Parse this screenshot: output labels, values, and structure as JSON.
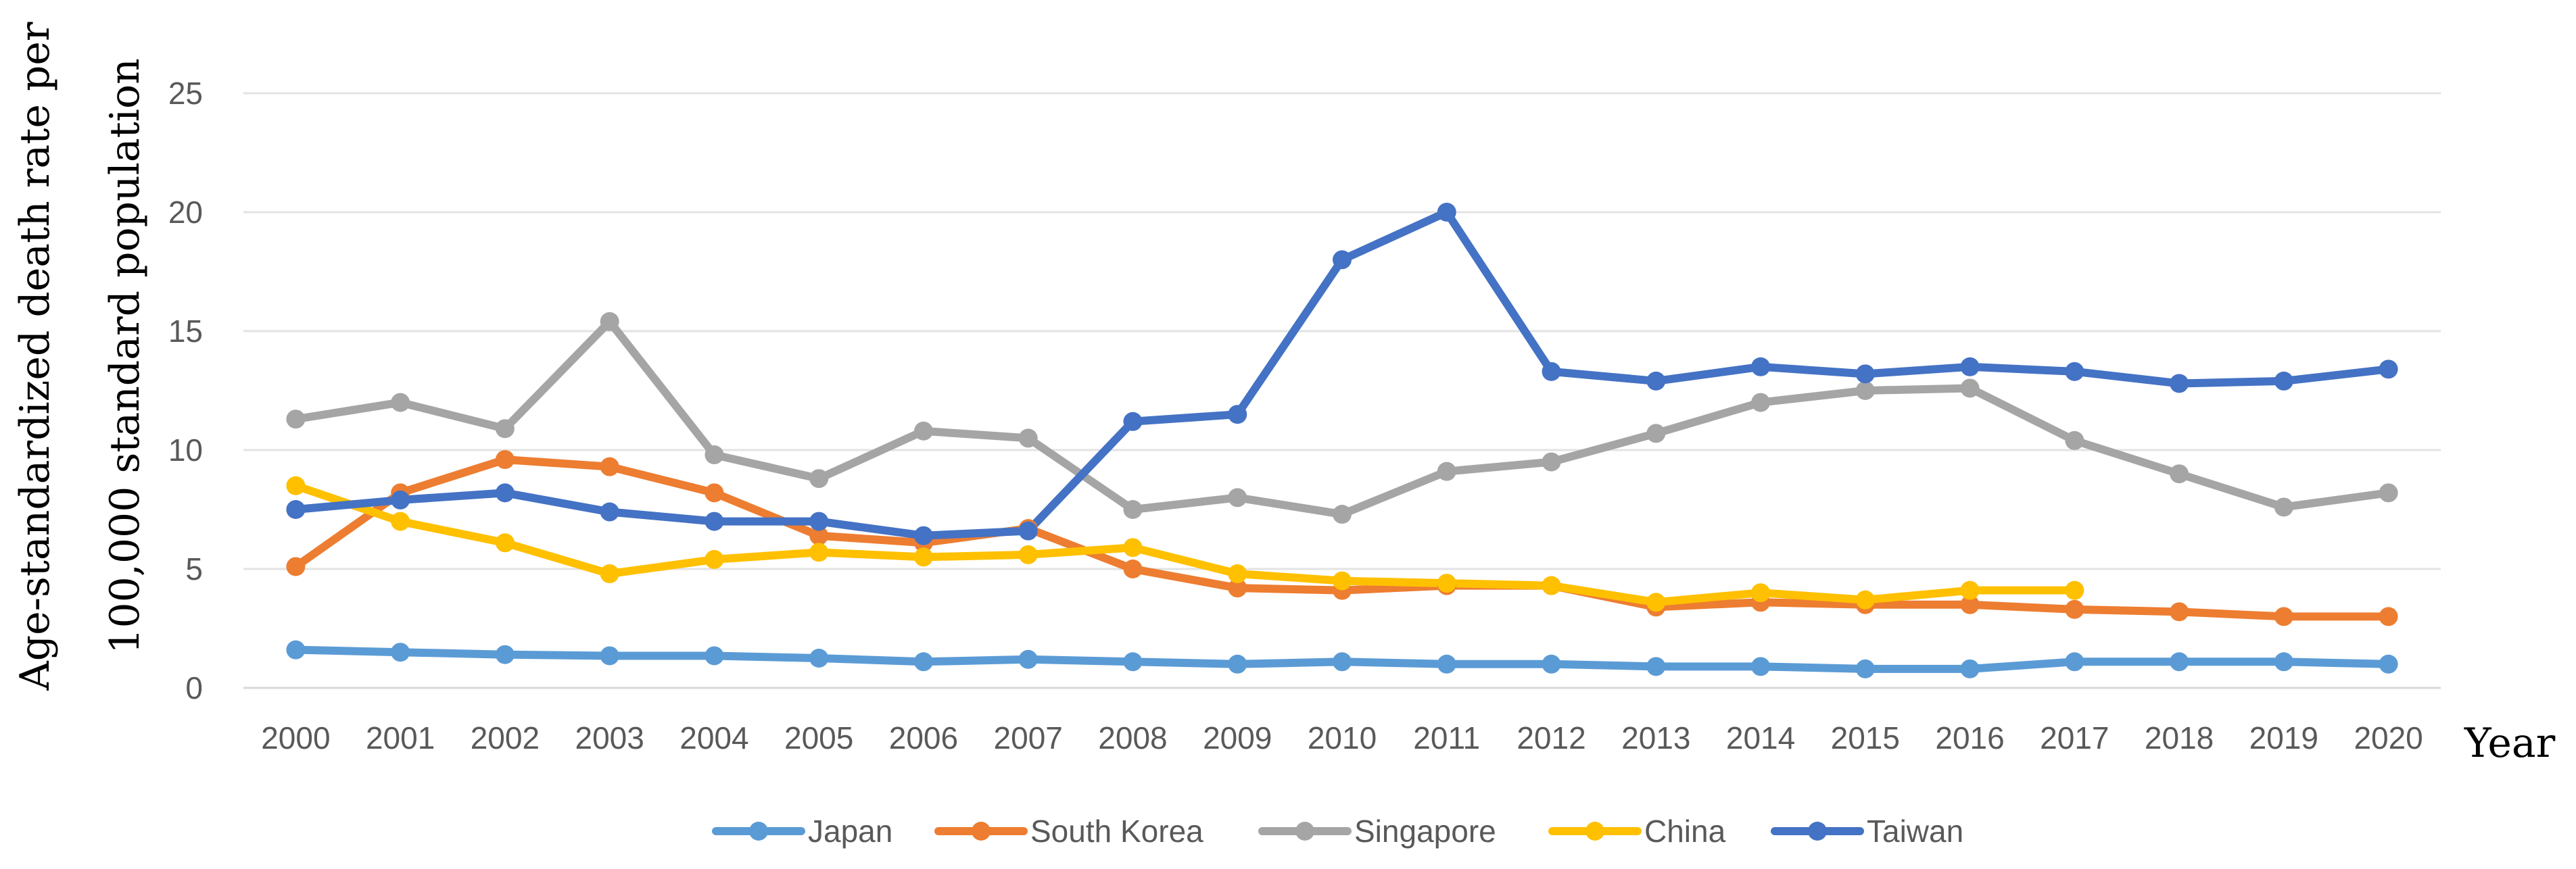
{
  "chart_data": {
    "type": "line",
    "title": "",
    "xlabel": "Year",
    "ylabel": [
      "Age-standardized death rate per",
      "100,000 standard population"
    ],
    "ylim": [
      0,
      25
    ],
    "yticks": [
      0,
      5,
      10,
      15,
      20,
      25
    ],
    "grid": true,
    "legend_position": "bottom",
    "categories": [
      "2000",
      "2001",
      "2002",
      "2003",
      "2004",
      "2005",
      "2006",
      "2007",
      "2008",
      "2009",
      "2010",
      "2011",
      "2012",
      "2013",
      "2014",
      "2015",
      "2016",
      "2017",
      "2018",
      "2019",
      "2020"
    ],
    "series": [
      {
        "name": "Japan",
        "color": "#5B9BD5",
        "values": [
          1.6,
          1.5,
          1.4,
          1.35,
          1.35,
          1.25,
          1.1,
          1.2,
          1.1,
          1.0,
          1.1,
          1.0,
          1.0,
          0.9,
          0.9,
          0.8,
          0.8,
          1.1,
          1.1,
          1.1,
          1.0
        ]
      },
      {
        "name": "South Korea",
        "color": "#ED7D31",
        "values": [
          5.1,
          8.2,
          9.6,
          9.3,
          8.2,
          6.4,
          6.1,
          6.7,
          5.0,
          4.2,
          4.1,
          4.3,
          4.3,
          3.4,
          3.6,
          3.5,
          3.5,
          3.3,
          3.2,
          3.0,
          3.0
        ]
      },
      {
        "name": "Singapore",
        "color": "#A5A5A5",
        "values": [
          11.3,
          12.0,
          10.9,
          15.4,
          9.8,
          8.8,
          10.8,
          10.5,
          7.5,
          8.0,
          7.3,
          9.1,
          9.5,
          10.7,
          12.0,
          12.5,
          12.6,
          10.4,
          9.0,
          7.6,
          8.2
        ]
      },
      {
        "name": "China",
        "color": "#FFC000",
        "values": [
          8.5,
          7.0,
          6.1,
          4.8,
          5.4,
          5.7,
          5.5,
          5.6,
          5.9,
          4.8,
          4.5,
          4.4,
          4.3,
          3.6,
          4.0,
          3.7,
          4.1,
          4.1,
          null,
          null,
          null
        ]
      },
      {
        "name": "Taiwan",
        "color": "#4472C4",
        "values": [
          7.5,
          7.9,
          8.2,
          7.4,
          7.0,
          7.0,
          6.4,
          6.6,
          11.2,
          11.5,
          18.0,
          20.0,
          13.3,
          12.9,
          13.5,
          13.2,
          13.5,
          13.3,
          12.8,
          12.9,
          13.4
        ]
      }
    ]
  }
}
